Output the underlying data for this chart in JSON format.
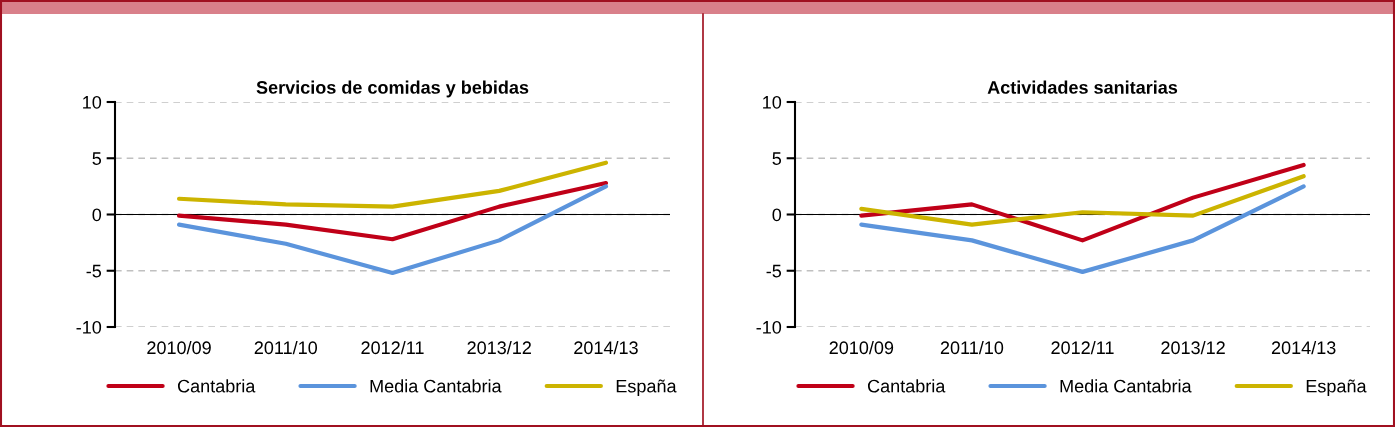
{
  "chart_data": [
    {
      "type": "line",
      "title": "Servicios de comidas y bebidas",
      "categories": [
        "2010/09",
        "2011/10",
        "2012/11",
        "2013/12",
        "2014/13"
      ],
      "ylim": [
        -10,
        10
      ],
      "yticks": [
        -10,
        -5,
        0,
        5,
        10
      ],
      "grid": "y",
      "legend": "bottom",
      "marker": "none",
      "line_style": "solid",
      "ref_lines": [
        {
          "axis": "y",
          "value": 0,
          "color": "#000000",
          "line_style": "solid"
        }
      ],
      "series": [
        {
          "name": "Cantabria",
          "color": "#c00018",
          "values": [
            -0.1,
            -0.9,
            -2.2,
            0.7,
            2.8
          ]
        },
        {
          "name": "Media Cantabria",
          "color": "#5b94dc",
          "values": [
            -0.9,
            -2.6,
            -5.2,
            -2.3,
            2.5
          ]
        },
        {
          "name": "España",
          "color": "#ccb400",
          "values": [
            1.4,
            0.9,
            0.7,
            2.1,
            4.6
          ]
        }
      ]
    },
    {
      "type": "line",
      "title": "Actividades sanitarias",
      "categories": [
        "2010/09",
        "2011/10",
        "2012/11",
        "2013/12",
        "2014/13"
      ],
      "ylim": [
        -10,
        10
      ],
      "yticks": [
        -10,
        -5,
        0,
        5,
        10
      ],
      "grid": "y",
      "legend": "bottom",
      "marker": "none",
      "line_style": "solid",
      "ref_lines": [
        {
          "axis": "y",
          "value": 0,
          "color": "#000000",
          "line_style": "solid"
        }
      ],
      "series": [
        {
          "name": "Cantabria",
          "color": "#c00018",
          "values": [
            -0.1,
            0.9,
            -2.3,
            1.5,
            4.4
          ]
        },
        {
          "name": "Media Cantabria",
          "color": "#5b94dc",
          "values": [
            -0.9,
            -2.3,
            -5.1,
            -2.3,
            2.5
          ]
        },
        {
          "name": "España",
          "color": "#ccb400",
          "values": [
            0.5,
            -0.9,
            0.2,
            -0.1,
            3.4
          ]
        }
      ]
    }
  ]
}
